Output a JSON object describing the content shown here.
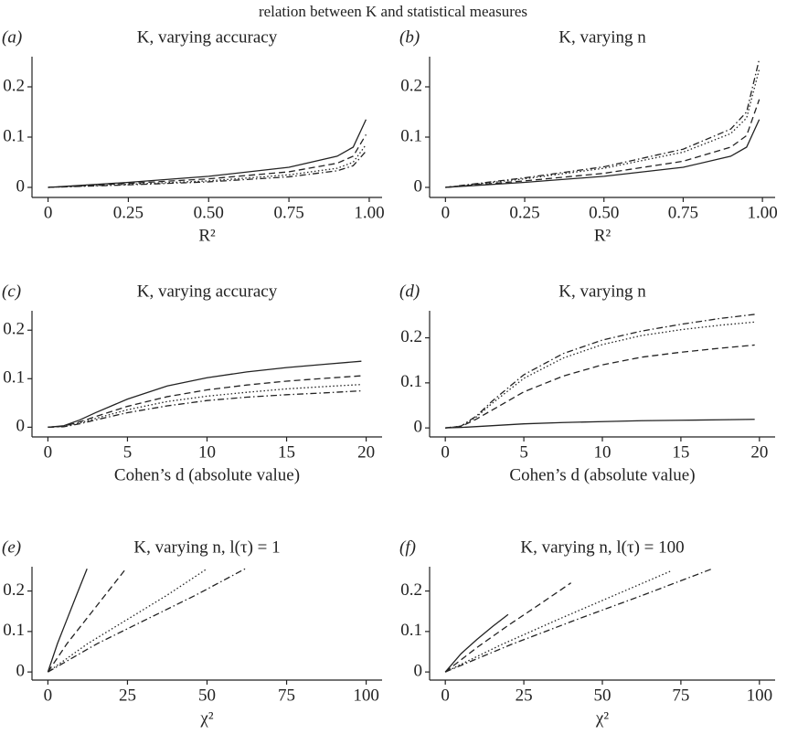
{
  "title": "relation between K and statistical measures",
  "chart_data": [
    {
      "type": "line",
      "label": "(a)",
      "title": "K, varying accuracy",
      "xlabel": "R²",
      "xlim": [
        -0.05,
        1.04
      ],
      "xticks": [
        0,
        0.25,
        {
          "value": 0.5,
          "label": "0.50"
        },
        0.75,
        {
          "value": 1,
          "label": "1.00"
        }
      ],
      "ylim": [
        -0.02,
        0.26
      ],
      "yticks": [
        0,
        0.1,
        0.2
      ],
      "x": [
        0,
        0.25,
        0.5,
        0.75,
        0.9,
        0.95,
        0.99
      ],
      "series": [
        {
          "dash": "solid",
          "color": "#222222",
          "values": [
            0,
            0.01,
            0.022,
            0.04,
            0.062,
            0.08,
            0.135
          ]
        },
        {
          "dash": "dashed",
          "color": "#222222",
          "values": [
            0,
            0.008,
            0.017,
            0.031,
            0.048,
            0.062,
            0.105
          ]
        },
        {
          "dash": "dotted",
          "color": "#222222",
          "values": [
            0,
            0.006,
            0.013,
            0.025,
            0.038,
            0.05,
            0.085
          ]
        },
        {
          "dash": "dashdot",
          "color": "#222222",
          "values": [
            0,
            0.005,
            0.011,
            0.021,
            0.033,
            0.043,
            0.072
          ]
        }
      ]
    },
    {
      "type": "line",
      "label": "(b)",
      "title": "K, varying n",
      "xlabel": "R²",
      "xlim": [
        -0.05,
        1.04
      ],
      "xticks": [
        0,
        0.25,
        {
          "value": 0.5,
          "label": "0.50"
        },
        0.75,
        {
          "value": 1,
          "label": "1.00"
        }
      ],
      "ylim": [
        -0.02,
        0.26
      ],
      "yticks": [
        0,
        0.1,
        0.2
      ],
      "x": [
        0,
        0.25,
        0.5,
        0.75,
        0.9,
        0.95,
        0.99
      ],
      "series": [
        {
          "dash": "solid",
          "color": "#222222",
          "values": [
            0,
            0.01,
            0.022,
            0.04,
            0.062,
            0.08,
            0.135
          ]
        },
        {
          "dash": "dashed",
          "color": "#222222",
          "values": [
            0,
            0.013,
            0.028,
            0.052,
            0.08,
            0.103,
            0.175
          ]
        },
        {
          "dash": "dotted",
          "color": "#222222",
          "values": [
            0,
            0.017,
            0.038,
            0.07,
            0.107,
            0.138,
            0.235
          ]
        },
        {
          "dash": "dashdot",
          "color": "#222222",
          "values": [
            0,
            0.019,
            0.041,
            0.076,
            0.116,
            0.15,
            0.255
          ]
        }
      ]
    },
    {
      "type": "line",
      "label": "(c)",
      "title": "K, varying accuracy",
      "xlabel": "Cohen’s d (absolute value)",
      "xlim": [
        -1,
        21
      ],
      "xticks": [
        0,
        5,
        10,
        15,
        20
      ],
      "ylim": [
        -0.02,
        0.24
      ],
      "yticks": [
        0,
        0.1,
        0.2
      ],
      "x": [
        0,
        1,
        2,
        3,
        5,
        7.5,
        10,
        12.5,
        15,
        17.5,
        19.7
      ],
      "series": [
        {
          "dash": "solid",
          "color": "#222222",
          "values": [
            0,
            0.003,
            0.015,
            0.03,
            0.058,
            0.085,
            0.102,
            0.114,
            0.123,
            0.13,
            0.136
          ]
        },
        {
          "dash": "dashed",
          "color": "#222222",
          "values": [
            0,
            0.002,
            0.011,
            0.022,
            0.043,
            0.063,
            0.077,
            0.087,
            0.095,
            0.101,
            0.106
          ]
        },
        {
          "dash": "dotted",
          "color": "#222222",
          "values": [
            0,
            0.002,
            0.009,
            0.018,
            0.036,
            0.053,
            0.064,
            0.072,
            0.079,
            0.084,
            0.088
          ]
        },
        {
          "dash": "dashdot",
          "color": "#222222",
          "values": [
            0,
            0.001,
            0.007,
            0.015,
            0.03,
            0.044,
            0.055,
            0.062,
            0.067,
            0.071,
            0.075
          ]
        }
      ]
    },
    {
      "type": "line",
      "label": "(d)",
      "title": "K, varying n",
      "xlabel": "Cohen’s d (absolute value)",
      "xlim": [
        -1,
        21
      ],
      "xticks": [
        0,
        5,
        10,
        15,
        20
      ],
      "ylim": [
        -0.02,
        0.26
      ],
      "yticks": [
        0,
        0.1,
        0.2
      ],
      "x": [
        0,
        1,
        2,
        3,
        5,
        7.5,
        10,
        12.5,
        15,
        17.5,
        19.7
      ],
      "series": [
        {
          "dash": "solid",
          "color": "#222222",
          "values": [
            0,
            0.001,
            0.003,
            0.005,
            0.009,
            0.012,
            0.014,
            0.016,
            0.017,
            0.018,
            0.019
          ]
        },
        {
          "dash": "dashed",
          "color": "#222222",
          "values": [
            0,
            0.003,
            0.02,
            0.04,
            0.08,
            0.115,
            0.14,
            0.157,
            0.168,
            0.177,
            0.184
          ]
        },
        {
          "dash": "dotted",
          "color": "#222222",
          "values": [
            0,
            0.004,
            0.025,
            0.055,
            0.11,
            0.155,
            0.185,
            0.205,
            0.218,
            0.228,
            0.235
          ]
        },
        {
          "dash": "dashdot",
          "color": "#222222",
          "values": [
            0,
            0.004,
            0.027,
            0.06,
            0.118,
            0.165,
            0.195,
            0.215,
            0.23,
            0.243,
            0.252
          ]
        }
      ]
    },
    {
      "type": "line",
      "label": "(e)",
      "title": "K, varying n, l(τ) = 1",
      "xlabel": "χ²",
      "xlim": [
        -5,
        105
      ],
      "xticks": [
        0,
        25,
        50,
        75,
        100
      ],
      "ylim": [
        -0.02,
        0.26
      ],
      "yticks": [
        0,
        0.1,
        0.2
      ],
      "series": [
        {
          "dash": "solid",
          "color": "#222222",
          "x": [
            0,
            3,
            6,
            9,
            12.3
          ],
          "values": [
            0,
            0.07,
            0.13,
            0.19,
            0.255
          ]
        },
        {
          "dash": "dashed",
          "color": "#222222",
          "x": [
            0,
            6,
            12,
            18,
            24.5
          ],
          "values": [
            0,
            0.07,
            0.13,
            0.19,
            0.255
          ]
        },
        {
          "dash": "dotted",
          "color": "#222222",
          "x": [
            0,
            12.5,
            25,
            37.5,
            50
          ],
          "values": [
            0,
            0.07,
            0.13,
            0.19,
            0.255
          ]
        },
        {
          "dash": "dashdot",
          "color": "#222222",
          "x": [
            0,
            15.5,
            31,
            46.5,
            62
          ],
          "values": [
            0,
            0.07,
            0.13,
            0.19,
            0.255
          ]
        }
      ]
    },
    {
      "type": "line",
      "label": "(f)",
      "title": "K, varying n, l(τ) = 100",
      "xlabel": "χ²",
      "xlim": [
        -5,
        105
      ],
      "xticks": [
        0,
        25,
        50,
        75,
        100
      ],
      "ylim": [
        -0.02,
        0.26
      ],
      "yticks": [
        0,
        0.1,
        0.2
      ],
      "series": [
        {
          "dash": "solid",
          "color": "#222222",
          "x": [
            0,
            5,
            10,
            15,
            20
          ],
          "values": [
            0,
            0.045,
            0.08,
            0.112,
            0.142
          ]
        },
        {
          "dash": "dashed",
          "color": "#222222",
          "x": [
            0,
            10,
            20,
            30,
            40
          ],
          "values": [
            0,
            0.06,
            0.115,
            0.167,
            0.22
          ]
        },
        {
          "dash": "dotted",
          "color": "#222222",
          "x": [
            0,
            18,
            36,
            54,
            72
          ],
          "values": [
            0,
            0.068,
            0.13,
            0.19,
            0.25
          ]
        },
        {
          "dash": "dashdot",
          "color": "#222222",
          "x": [
            0,
            21,
            42,
            63,
            85
          ],
          "values": [
            0,
            0.068,
            0.13,
            0.19,
            0.255
          ]
        }
      ]
    }
  ]
}
